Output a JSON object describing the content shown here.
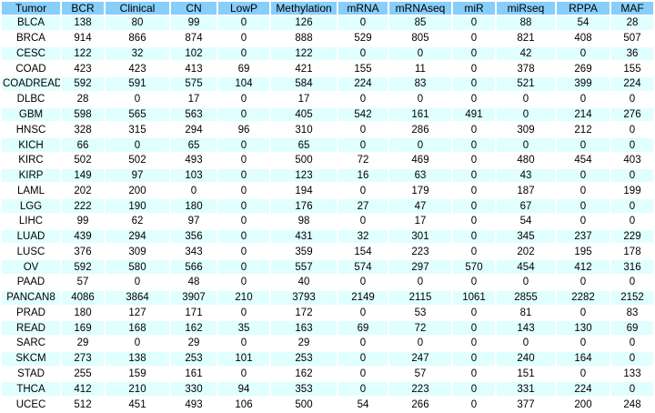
{
  "colors": {
    "header_bg": "#87CEFA",
    "stripe_bg": "#E0FFFF",
    "row_bg": "#FFFFFF",
    "gap_bg": "#FFFFFF",
    "text": "#000000"
  },
  "chart_data": {
    "type": "table",
    "title": "",
    "columns": [
      "Tumor",
      "BCR",
      "Clinical",
      "CN",
      "LowP",
      "Methylation",
      "mRNA",
      "mRNAseq",
      "miR",
      "miRseq",
      "RPPA",
      "MAF"
    ],
    "rows": [
      [
        "BLCA",
        138,
        80,
        99,
        0,
        126,
        0,
        85,
        0,
        88,
        54,
        28
      ],
      [
        "BRCA",
        914,
        866,
        874,
        0,
        888,
        529,
        805,
        0,
        821,
        408,
        507
      ],
      [
        "CESC",
        122,
        32,
        102,
        0,
        122,
        0,
        0,
        0,
        42,
        0,
        36
      ],
      [
        "COAD",
        423,
        423,
        413,
        69,
        421,
        155,
        11,
        0,
        378,
        269,
        155
      ],
      [
        "COADREAD",
        592,
        591,
        575,
        104,
        584,
        224,
        83,
        0,
        521,
        399,
        224
      ],
      [
        "DLBC",
        28,
        0,
        17,
        0,
        17,
        0,
        0,
        0,
        0,
        0,
        0
      ],
      [
        "GBM",
        598,
        565,
        563,
        0,
        405,
        542,
        161,
        491,
        0,
        214,
        276
      ],
      [
        "HNSC",
        328,
        315,
        294,
        96,
        310,
        0,
        286,
        0,
        309,
        212,
        0
      ],
      [
        "KICH",
        66,
        0,
        65,
        0,
        65,
        0,
        0,
        0,
        0,
        0,
        0
      ],
      [
        "KIRC",
        502,
        502,
        493,
        0,
        500,
        72,
        469,
        0,
        480,
        454,
        403
      ],
      [
        "KIRP",
        149,
        97,
        103,
        0,
        123,
        16,
        63,
        0,
        43,
        0,
        0
      ],
      [
        "LAML",
        202,
        200,
        0,
        0,
        194,
        0,
        179,
        0,
        187,
        0,
        199
      ],
      [
        "LGG",
        222,
        190,
        180,
        0,
        176,
        27,
        47,
        0,
        67,
        0,
        0
      ],
      [
        "LIHC",
        99,
        62,
        97,
        0,
        98,
        0,
        17,
        0,
        54,
        0,
        0
      ],
      [
        "LUAD",
        439,
        294,
        356,
        0,
        431,
        32,
        301,
        0,
        345,
        237,
        229
      ],
      [
        "LUSC",
        376,
        309,
        343,
        0,
        359,
        154,
        223,
        0,
        202,
        195,
        178
      ],
      [
        "OV",
        592,
        580,
        566,
        0,
        557,
        574,
        297,
        570,
        454,
        412,
        316
      ],
      [
        "PAAD",
        57,
        0,
        48,
        0,
        40,
        0,
        0,
        0,
        0,
        0,
        0
      ],
      [
        "PANCAN8",
        4086,
        3864,
        3907,
        210,
        3793,
        2149,
        2115,
        1061,
        2855,
        2282,
        2152
      ],
      [
        "PRAD",
        180,
        127,
        171,
        0,
        172,
        0,
        53,
        0,
        81,
        0,
        83
      ],
      [
        "READ",
        169,
        168,
        162,
        35,
        163,
        69,
        72,
        0,
        143,
        130,
        69
      ],
      [
        "SARC",
        29,
        0,
        29,
        0,
        29,
        0,
        0,
        0,
        0,
        0,
        0
      ],
      [
        "SKCM",
        273,
        138,
        253,
        101,
        253,
        0,
        247,
        0,
        240,
        164,
        0
      ],
      [
        "STAD",
        255,
        159,
        161,
        0,
        162,
        0,
        57,
        0,
        151,
        0,
        133
      ],
      [
        "THCA",
        412,
        210,
        330,
        94,
        353,
        0,
        223,
        0,
        331,
        224,
        0
      ],
      [
        "UCEC",
        512,
        451,
        493,
        106,
        500,
        54,
        266,
        0,
        377,
        200,
        248
      ]
    ],
    "layout": {
      "header_row": true,
      "striped": "odd-data-rows-cyan",
      "cell_alignment": "center"
    }
  }
}
